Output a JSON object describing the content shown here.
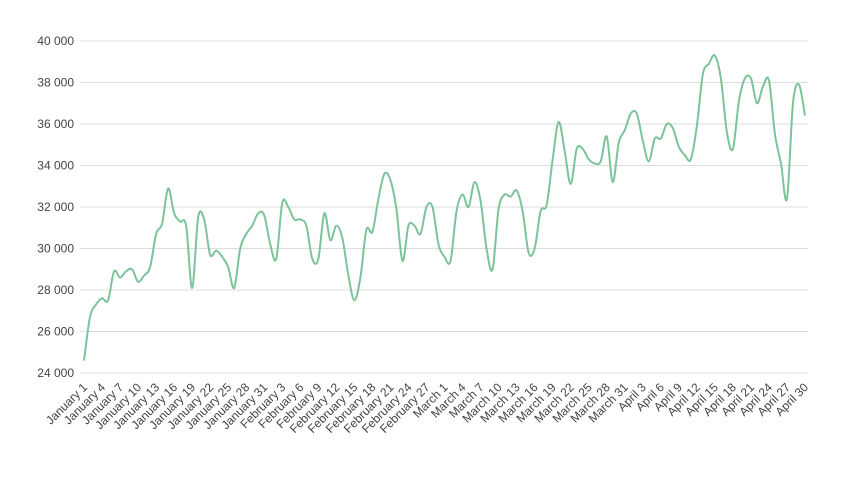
{
  "chart_data": {
    "type": "line",
    "categories": [
      "January 1",
      null,
      null,
      "January 4",
      null,
      null,
      "January 7",
      null,
      null,
      "January 10",
      null,
      null,
      "January 13",
      null,
      null,
      "January 16",
      null,
      null,
      "January 19",
      null,
      null,
      "January 22",
      null,
      null,
      "January 25",
      null,
      null,
      "January 28",
      null,
      null,
      "January 31",
      null,
      null,
      "February 3",
      null,
      null,
      "February 6",
      null,
      null,
      "February 9",
      null,
      null,
      "February 12",
      null,
      null,
      "February 15",
      null,
      null,
      "February 18",
      null,
      null,
      "February 21",
      null,
      null,
      "February 24",
      null,
      null,
      "February 27",
      null,
      null,
      "March 1",
      null,
      null,
      "March 4",
      null,
      null,
      "March 7",
      null,
      null,
      "March 10",
      null,
      null,
      "March 13",
      null,
      null,
      "March 16",
      null,
      null,
      "March 19",
      null,
      null,
      "March 22",
      null,
      null,
      "March 25",
      null,
      null,
      "March 28",
      null,
      null,
      "March 31",
      null,
      null,
      "April 3",
      null,
      null,
      "April 6",
      null,
      null,
      "April 9",
      null,
      null,
      "April 12",
      null,
      null,
      "April 15",
      null,
      null,
      "April 18",
      null,
      null,
      "April 21",
      null,
      null,
      "April 24",
      null,
      null,
      "April 27",
      null,
      null,
      "April 30"
    ],
    "values": [
      24600,
      26700,
      27300,
      27600,
      27500,
      28900,
      28600,
      28900,
      29000,
      28400,
      28700,
      29100,
      30700,
      31200,
      32900,
      31700,
      31300,
      31100,
      28100,
      31500,
      31400,
      29700,
      29900,
      29600,
      29100,
      28100,
      30000,
      30700,
      31100,
      31700,
      31600,
      30200,
      29500,
      32200,
      32000,
      31400,
      31400,
      31100,
      29500,
      29500,
      31700,
      30400,
      31100,
      30500,
      28700,
      27500,
      28600,
      30900,
      30800,
      32400,
      33600,
      33300,
      31900,
      29400,
      31100,
      31100,
      30700,
      32000,
      32000,
      30200,
      29600,
      29400,
      31800,
      32600,
      32000,
      33200,
      32300,
      30000,
      29000,
      31900,
      32600,
      32500,
      32800,
      31800,
      29800,
      30000,
      31800,
      32100,
      34300,
      36100,
      34700,
      33100,
      34800,
      34800,
      34300,
      34100,
      34200,
      35400,
      33200,
      35100,
      35700,
      36500,
      36500,
      35200,
      34200,
      35300,
      35300,
      36000,
      35800,
      34900,
      34500,
      34300,
      35900,
      38400,
      38900,
      39300,
      38200,
      35600,
      34800,
      37100,
      38200,
      38200,
      37000,
      37800,
      38100,
      35500,
      34100,
      32400,
      37000,
      37900,
      36400
    ],
    "color": "#7cc39a",
    "ylim": [
      24000,
      40000
    ],
    "yticks": [
      {
        "value": 24000,
        "label": "24 000"
      },
      {
        "value": 26000,
        "label": "26 000"
      },
      {
        "value": 28000,
        "label": "28 000"
      },
      {
        "value": 30000,
        "label": "30 000"
      },
      {
        "value": 32000,
        "label": "32 000"
      },
      {
        "value": 34000,
        "label": "34 000"
      },
      {
        "value": 36000,
        "label": "36 000"
      },
      {
        "value": 38000,
        "label": "38 000"
      },
      {
        "value": 40000,
        "label": "40 000"
      }
    ],
    "grid": true
  }
}
